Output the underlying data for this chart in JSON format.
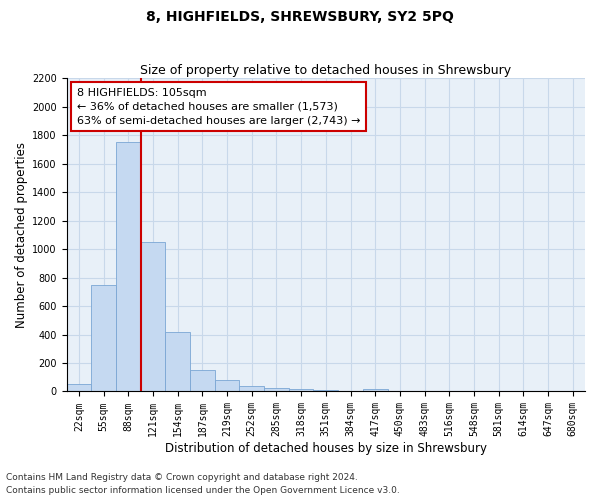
{
  "title": "8, HIGHFIELDS, SHREWSBURY, SY2 5PQ",
  "subtitle": "Size of property relative to detached houses in Shrewsbury",
  "xlabel": "Distribution of detached houses by size in Shrewsbury",
  "ylabel": "Number of detached properties",
  "footer_line1": "Contains HM Land Registry data © Crown copyright and database right 2024.",
  "footer_line2": "Contains public sector information licensed under the Open Government Licence v3.0.",
  "bin_labels": [
    "22sqm",
    "55sqm",
    "88sqm",
    "121sqm",
    "154sqm",
    "187sqm",
    "219sqm",
    "252sqm",
    "285sqm",
    "318sqm",
    "351sqm",
    "384sqm",
    "417sqm",
    "450sqm",
    "483sqm",
    "516sqm",
    "548sqm",
    "581sqm",
    "614sqm",
    "647sqm",
    "680sqm"
  ],
  "bar_values": [
    50,
    750,
    1750,
    1050,
    420,
    150,
    80,
    35,
    25,
    15,
    10,
    5,
    20,
    0,
    0,
    0,
    0,
    0,
    0,
    0,
    0
  ],
  "bar_color": "#c5d9f1",
  "bar_edge_color": "#7aa6d4",
  "grid_color": "#c8d8ea",
  "red_line_color": "#cc0000",
  "annotation_line1": "8 HIGHFIELDS: 105sqm",
  "annotation_line2": "← 36% of detached houses are smaller (1,573)",
  "annotation_line3": "63% of semi-detached houses are larger (2,743) →",
  "annotation_box_color": "#cc0000",
  "ylim": [
    0,
    2200
  ],
  "yticks": [
    0,
    200,
    400,
    600,
    800,
    1000,
    1200,
    1400,
    1600,
    1800,
    2000,
    2200
  ],
  "plot_background": "#e8f0f8",
  "title_fontsize": 10,
  "subtitle_fontsize": 9,
  "axis_label_fontsize": 8.5,
  "tick_fontsize": 7,
  "annotation_fontsize": 8,
  "footer_fontsize": 6.5
}
